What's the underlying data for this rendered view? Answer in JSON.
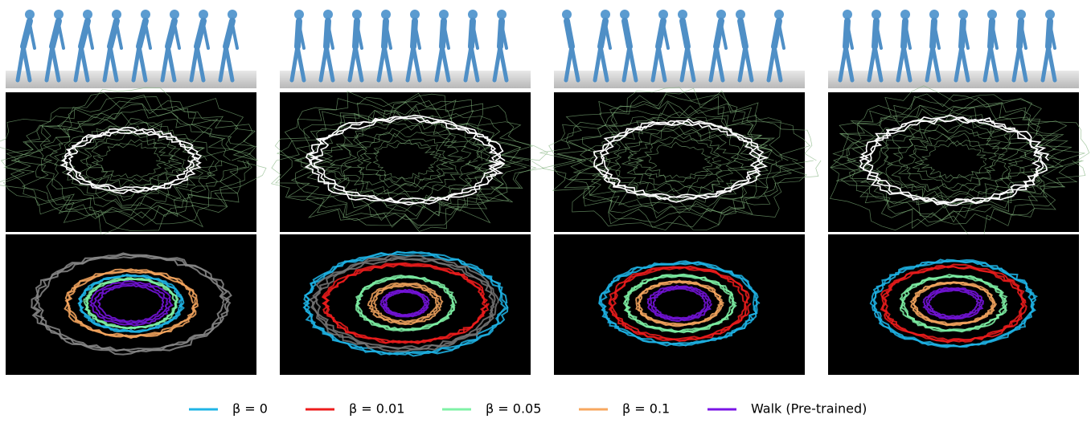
{
  "legend": {
    "items": [
      {
        "label": "β = 0",
        "color": "#1fb4e6"
      },
      {
        "label": "β = 0.01",
        "color": "#ee1c1c"
      },
      {
        "label": "β = 0.05",
        "color": "#7ff2a6"
      },
      {
        "label": "β = 0.1",
        "color": "#f7a75f"
      },
      {
        "label": "Walk (Pre-trained)",
        "color": "#7a14e6"
      }
    ]
  }
}
